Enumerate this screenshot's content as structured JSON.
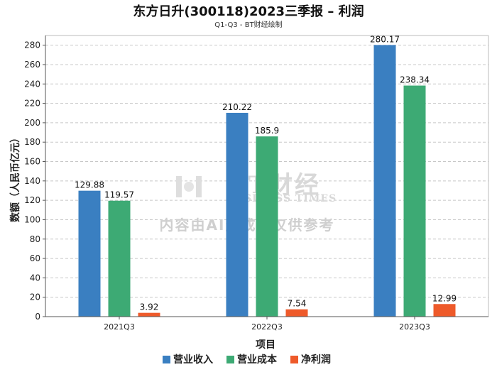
{
  "chart_data": {
    "type": "bar",
    "title": "东方日升(300118)2023三季报 – 利润",
    "subtitle": "Q1-Q3 - BT财经绘制",
    "xlabel": "项目",
    "ylabel": "数额（人民币亿元）",
    "categories": [
      "2021Q3",
      "2022Q3",
      "2023Q3"
    ],
    "ylim": [
      0,
      290
    ],
    "yticks": [
      0,
      20,
      40,
      60,
      80,
      100,
      120,
      140,
      160,
      180,
      200,
      220,
      240,
      260,
      280
    ],
    "grid": true,
    "legend_position": "bottom-center",
    "series": [
      {
        "name": "营业收入",
        "color": "#3a7fc1",
        "values": [
          129.88,
          210.22,
          280.17
        ],
        "labels": [
          "129.88",
          "210.22",
          "280.17"
        ]
      },
      {
        "name": "营业成本",
        "color": "#3daa74",
        "values": [
          119.57,
          185.9,
          238.34
        ],
        "labels": [
          "119.57",
          "185.9",
          "238.34"
        ]
      },
      {
        "name": "净利润",
        "color": "#ee5a2a",
        "values": [
          3.92,
          7.54,
          12.99
        ],
        "labels": [
          "3.92",
          "7.54",
          "12.99"
        ]
      }
    ]
  },
  "watermark": {
    "logo_text": "BT财经",
    "logo_sub": "BUSINESS TIMES",
    "note": "内容由AI生成，仅供参考"
  }
}
